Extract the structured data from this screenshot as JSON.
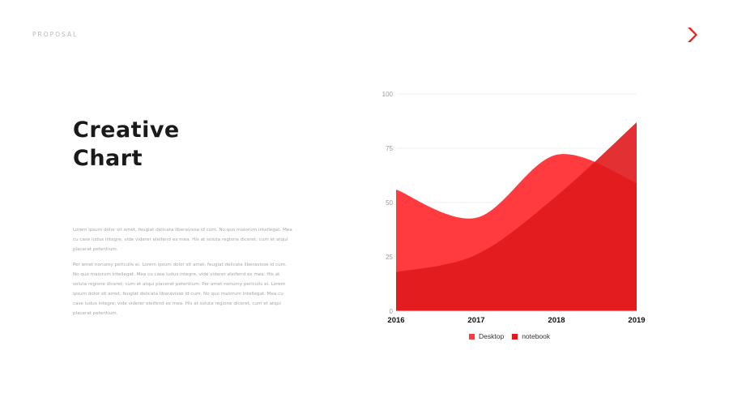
{
  "header": {
    "label": "PROPOSAL"
  },
  "title": {
    "line1": "Creative",
    "line2": "Chart"
  },
  "paragraphs": [
    "Lorem ipsum dolor sit amet, feugiat delicata liberavisse id cum. No quo maiorum intellegat. Mea cu case ludus integre, vide viderer eleifend ex mea. His at soluta regione diceret, cum et atqui placerat petentium.",
    "Per amet nonumy periculis ei. Lorem ipsum dolor sit amet, feugiat delicata liberavisse id cum. No quo maiorum intellegat. Mea cu case ludus integre, vide viderer eleifend ex mea. His at soluta regione diceret, cum et atqui placerat petentium. Per amet nonumy periculis ei. Lorem ipsum dolor sit amet, feugiat delicata liberavisse id cum. No quo maiorum intellegat. Mea cu case ludus integre, vide viderer eleifend ex mea. His at soluta regione diceret, cum et atqui placerat petentium."
  ],
  "colors": {
    "desktop": "#ff3b3f",
    "notebook": "#e0191c",
    "logo": "#e52222"
  },
  "chart_data": {
    "type": "area",
    "categories": [
      "2016",
      "2017",
      "2018",
      "2019"
    ],
    "yticks": [
      0,
      25,
      50,
      75,
      100
    ],
    "ylim": [
      0,
      100
    ],
    "grid": true,
    "legend": "bottom",
    "series": [
      {
        "name": "Desktop",
        "values": [
          56,
          43,
          72,
          59
        ],
        "color": "#ff3b3f"
      },
      {
        "name": "notebook",
        "values": [
          18,
          26,
          53,
          87
        ],
        "color": "#e0191c"
      }
    ]
  }
}
